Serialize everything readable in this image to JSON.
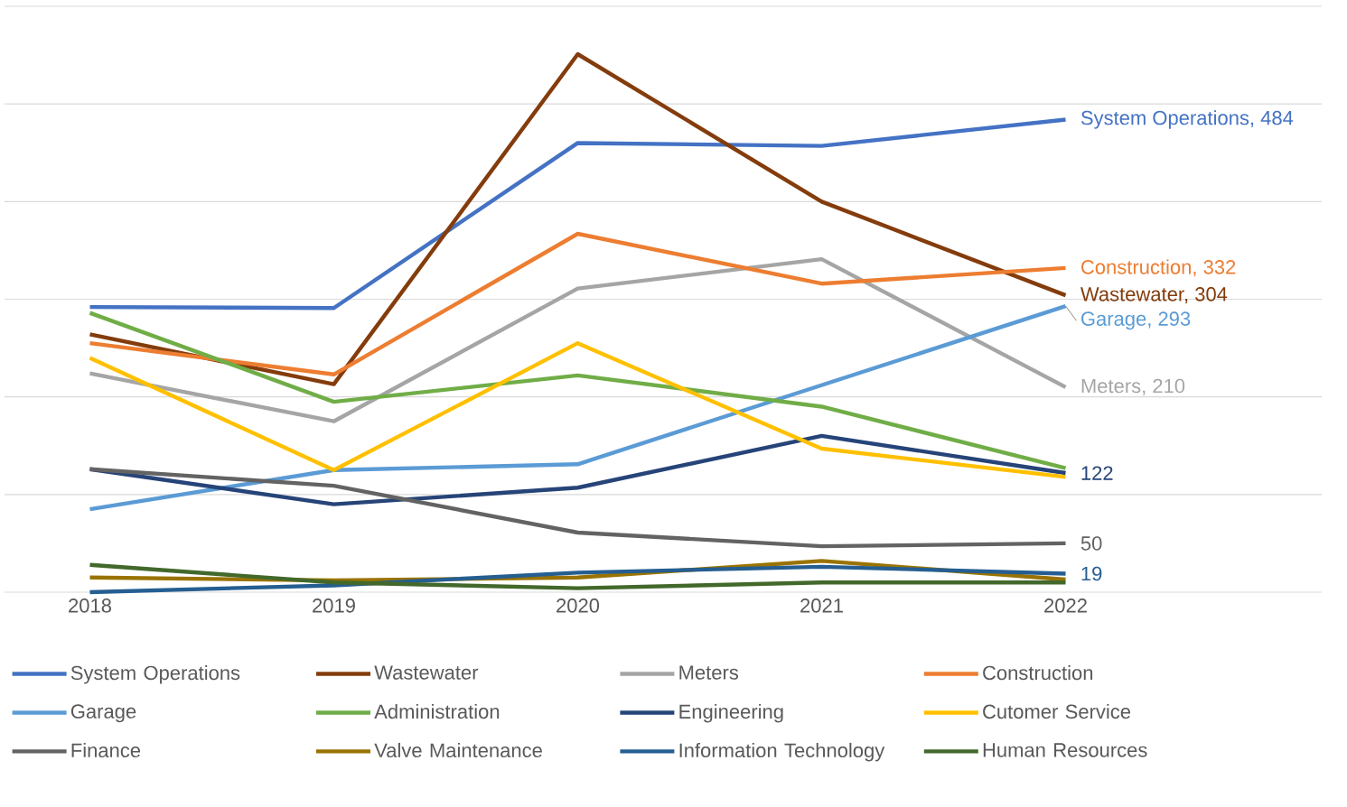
{
  "chart_data": {
    "type": "line",
    "categories": [
      "2018",
      "2019",
      "2020",
      "2021",
      "2022"
    ],
    "ylim": [
      0,
      600
    ],
    "yticks": [
      {
        "value": 0,
        "label": null
      },
      {
        "value": 100,
        "label": null
      },
      {
        "value": 200,
        "label": null
      },
      {
        "value": 300,
        "label": null
      },
      {
        "value": 400,
        "label": null
      },
      {
        "value": 500,
        "label": null
      },
      {
        "value": 600,
        "label": null
      }
    ],
    "grid": "y",
    "legend": "bottom",
    "tick_labels": "x",
    "series": [
      {
        "name": "System Operations",
        "color": "#4472c4",
        "values": [
          292,
          291,
          460,
          457,
          484
        ],
        "value_labels": [
          null,
          null,
          null,
          null,
          "System Operations,  484"
        ]
      },
      {
        "name": "Wastewater",
        "color": "#843c0c",
        "values": [
          264,
          213,
          551,
          400,
          304
        ],
        "value_labels": [
          null,
          null,
          null,
          null,
          "Wastewater,  304"
        ]
      },
      {
        "name": "Meters",
        "color": "#a5a5a5",
        "values": [
          224,
          175,
          311,
          341,
          210
        ],
        "value_labels": [
          null,
          null,
          null,
          null,
          "Meters,  210"
        ]
      },
      {
        "name": "Construction",
        "color": "#ed7d31",
        "values": [
          255,
          223,
          367,
          316,
          332
        ],
        "value_labels": [
          null,
          null,
          null,
          null,
          "Construction, 332"
        ]
      },
      {
        "name": "Garage",
        "color": "#5b9bd5",
        "values": [
          85,
          125,
          131,
          212,
          293
        ],
        "value_labels": [
          null,
          null,
          null,
          null,
          "Garage,  293"
        ]
      },
      {
        "name": "Administration",
        "color": "#70ad47",
        "values": [
          286,
          195,
          222,
          190,
          127
        ]
      },
      {
        "name": "Engineering",
        "color": "#264478",
        "values": [
          126,
          90,
          107,
          160,
          122
        ],
        "value_labels": [
          null,
          null,
          null,
          null,
          "122"
        ]
      },
      {
        "name": "Cutomer Service",
        "color": "#ffc000",
        "values": [
          240,
          125,
          255,
          147,
          118
        ]
      },
      {
        "name": "Finance",
        "color": "#636363",
        "values": [
          126,
          109,
          61,
          47,
          50
        ],
        "value_labels": [
          null,
          null,
          null,
          null,
          "50"
        ]
      },
      {
        "name": "Valve Maintenance",
        "color": "#997300",
        "values": [
          15,
          12,
          15,
          32,
          13
        ]
      },
      {
        "name": "Information Technology",
        "color": "#255e91",
        "values": [
          0,
          7,
          20,
          26,
          19
        ],
        "value_labels": [
          null,
          null,
          null,
          null,
          "19"
        ]
      },
      {
        "name": "Human Resources",
        "color": "#43682b",
        "values": [
          28,
          10,
          4,
          10,
          10
        ]
      }
    ]
  }
}
